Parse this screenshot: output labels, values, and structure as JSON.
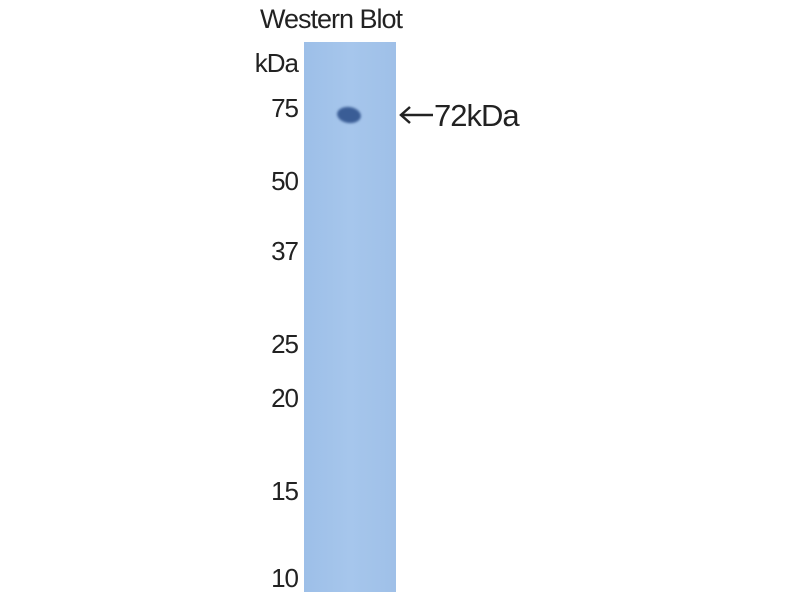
{
  "title": "Western Blot",
  "unit_label": "kDa",
  "markers": [
    "75",
    "50",
    "37",
    "25",
    "20",
    "15",
    "10"
  ],
  "band_label": "72kDa",
  "colors": {
    "lane": "#a3c4ea",
    "band": "#3a5d96"
  }
}
